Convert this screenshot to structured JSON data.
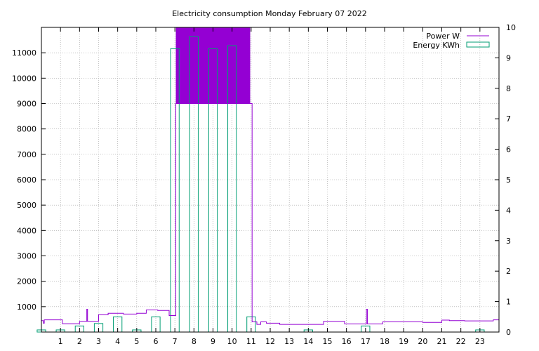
{
  "chart_data": {
    "type": "line",
    "title": "Electricity consumption Monday February 07 2022",
    "xlabel": "",
    "ylabel": "",
    "y2label": "",
    "xlim": [
      0,
      24
    ],
    "ylim": [
      0,
      12000
    ],
    "y2lim": [
      0,
      10
    ],
    "x_ticks": [
      1,
      2,
      3,
      4,
      5,
      6,
      7,
      8,
      9,
      10,
      11,
      12,
      13,
      14,
      15,
      16,
      17,
      18,
      19,
      20,
      21,
      22,
      23
    ],
    "x_tick_labels": [
      "1",
      "2",
      "3",
      "4",
      "5",
      "6",
      "7",
      "8",
      "9",
      "10",
      "11",
      "12",
      "13",
      "14",
      "15",
      "16",
      "17",
      "18",
      "19",
      "20",
      "21",
      "22",
      "23"
    ],
    "y_ticks": [
      1000,
      2000,
      3000,
      4000,
      5000,
      6000,
      7000,
      8000,
      9000,
      10000,
      11000
    ],
    "y_tick_labels": [
      "1000",
      "2000",
      "3000",
      "4000",
      "5000",
      "6000",
      "7000",
      "8000",
      "9000",
      "10000",
      "11000"
    ],
    "y2_ticks": [
      0,
      1,
      2,
      3,
      4,
      5,
      6,
      7,
      8,
      9,
      10
    ],
    "y2_tick_labels": [
      "0",
      "1",
      "2",
      "3",
      "4",
      "5",
      "6",
      "7",
      "8",
      "9",
      "10"
    ],
    "grid": true,
    "legend_position": "top-right",
    "series": [
      {
        "name": "Power W",
        "axis": "y1",
        "style": "steps",
        "color": "#9400d3",
        "points": [
          [
            0.0,
            450
          ],
          [
            0.1,
            350
          ],
          [
            0.15,
            480
          ],
          [
            1.1,
            330
          ],
          [
            2.0,
            420
          ],
          [
            2.38,
            900
          ],
          [
            2.42,
            420
          ],
          [
            3.0,
            680
          ],
          [
            3.5,
            740
          ],
          [
            4.3,
            710
          ],
          [
            5.0,
            740
          ],
          [
            5.5,
            870
          ],
          [
            6.1,
            850
          ],
          [
            6.7,
            650
          ],
          [
            7.05,
            9000
          ],
          [
            10.95,
            9000
          ],
          [
            11.05,
            400
          ],
          [
            11.3,
            300
          ],
          [
            11.5,
            400
          ],
          [
            11.8,
            350
          ],
          [
            12.5,
            300
          ],
          [
            14.3,
            300
          ],
          [
            14.8,
            420
          ],
          [
            15.9,
            320
          ],
          [
            17.05,
            900
          ],
          [
            17.1,
            320
          ],
          [
            17.9,
            400
          ],
          [
            19.0,
            400
          ],
          [
            20.0,
            380
          ],
          [
            21.0,
            470
          ],
          [
            21.4,
            450
          ],
          [
            22.2,
            440
          ],
          [
            23.7,
            480
          ],
          [
            24.0,
            480
          ]
        ],
        "fill_band": {
          "x_from": 7.05,
          "x_to": 10.95,
          "y_from": 9000,
          "y_to": 12000,
          "color": "#9400d3"
        }
      },
      {
        "name": "Energy KWh",
        "axis": "y2",
        "style": "boxes",
        "color": "#009e73",
        "x": [
          0,
          1,
          2,
          3,
          4,
          5,
          6,
          7,
          8,
          9,
          10,
          11,
          12,
          13,
          14,
          15,
          16,
          17,
          18,
          19,
          20,
          21,
          22,
          23
        ],
        "values": [
          0.07,
          0.07,
          0.2,
          0.28,
          0.5,
          0.07,
          0.5,
          9.3,
          9.7,
          9.3,
          9.4,
          0.5,
          0,
          0,
          0.07,
          0,
          0,
          0.2,
          0,
          0,
          0,
          0,
          0,
          0.07
        ]
      }
    ]
  }
}
